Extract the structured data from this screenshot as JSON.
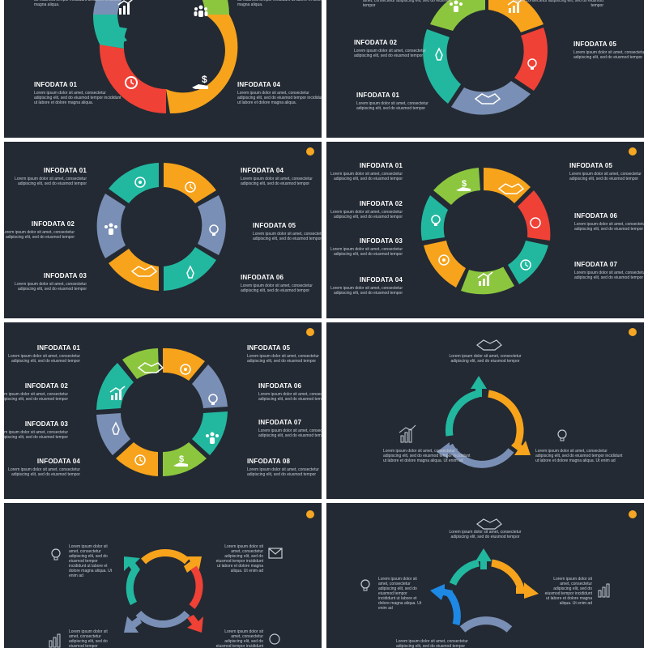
{
  "slides": [
    {
      "labels": [
        {
          "title": "",
          "body": "do eiusmod tempor incididunt ut labore et dolore magna aliqua."
        },
        {
          "title": "",
          "body": "do eiusmod tempor incididunt ut labore et dolore magna aliqua."
        },
        {
          "title": "INFODATA 01",
          "body": "Lorem ipsum dolor sit amet, consectetur adipiscing elit, sed do eiusmod tempor incididunt ut labore et dolore magna aliqua."
        },
        {
          "title": "INFODATA 04",
          "body": "Lorem ipsum dolor sit amet, consectetur adipiscing elit, sed do eiusmod tempor incididunt ut labore et dolore magna aliqua."
        }
      ]
    },
    {
      "labels": [
        {
          "title": "",
          "body": "amet, consectetur adipiscing elit, sed do eiusmod tempor"
        },
        {
          "title": "",
          "body": "amet, consectetur adipiscing elit, sed do eiusmod tempor"
        },
        {
          "title": "INFODATA 02",
          "body": "Lorem ipsum dolor sit amet, consectetur adipiscing elit, sed do eiusmod tempor"
        },
        {
          "title": "INFODATA 05",
          "body": "Lorem ipsum dolor sit amet, consectetur adipiscing elit, sed do eiusmod tempor"
        },
        {
          "title": "INFODATA 01",
          "body": "Lorem ipsum dolor sit amet, consectetur adipiscing elit, sed do eiusmod tempor"
        }
      ]
    },
    {
      "badge": "",
      "labels": [
        {
          "title": "INFODATA 01",
          "body": "Lorem ipsum dolor sit amet, consectetur adipiscing elit, sed do eiusmod tempor"
        },
        {
          "title": "INFODATA 04",
          "body": "Lorem ipsum dolor sit amet, consectetur adipiscing elit, sed do eiusmod tempor"
        },
        {
          "title": "INFODATA 02",
          "body": "Lorem ipsum dolor sit amet, consectetur adipiscing elit, sed do eiusmod tempor"
        },
        {
          "title": "INFODATA 05",
          "body": "Lorem ipsum dolor sit amet, consectetur adipiscing elit, sed do eiusmod tempor"
        },
        {
          "title": "INFODATA 03",
          "body": "Lorem ipsum dolor sit amet, consectetur adipiscing elit, sed do eiusmod tempor"
        },
        {
          "title": "INFODATA 06",
          "body": "Lorem ipsum dolor sit amet, consectetur adipiscing elit, sed do eiusmod tempor"
        }
      ]
    },
    {
      "badge": "",
      "labels": [
        {
          "title": "INFODATA 01",
          "body": "Lorem ipsum dolor sit amet, consectetur adipiscing elit, sed do eiusmod tempor"
        },
        {
          "title": "INFODATA 05",
          "body": "Lorem ipsum dolor sit amet, consectetur adipiscing elit, sed do eiusmod tempor"
        },
        {
          "title": "INFODATA 02",
          "body": "Lorem ipsum dolor sit amet, consectetur adipiscing elit, sed do eiusmod tempor"
        },
        {
          "title": "INFODATA 06",
          "body": "Lorem ipsum dolor sit amet, consectetur adipiscing elit, sed do eiusmod tempor"
        },
        {
          "title": "INFODATA 03",
          "body": "Lorem ipsum dolor sit amet, consectetur adipiscing elit, sed do eiusmod tempor"
        },
        {
          "title": "INFODATA 07",
          "body": "Lorem ipsum dolor sit amet, consectetur adipiscing elit, sed do eiusmod tempor"
        },
        {
          "title": "INFODATA 04",
          "body": "Lorem ipsum dolor sit amet, consectetur adipiscing elit, sed do eiusmod tempor"
        }
      ]
    },
    {
      "badge": "",
      "labels": [
        {
          "title": "INFODATA 01",
          "body": "Lorem ipsum dolor sit amet, consectetur adipiscing elit, sed do eiusmod tempor"
        },
        {
          "title": "INFODATA 05",
          "body": "Lorem ipsum dolor sit amet, consectetur adipiscing elit, sed do eiusmod tempor"
        },
        {
          "title": "INFODATA 02",
          "body": "Lorem ipsum dolor sit amet, consectetur adipiscing elit, sed do eiusmod tempor"
        },
        {
          "title": "INFODATA 06",
          "body": "Lorem ipsum dolor sit amet, consectetur adipiscing elit, sed do eiusmod tempor"
        },
        {
          "title": "INFODATA 03",
          "body": "Lorem ipsum dolor sit amet, consectetur adipiscing elit, sed do eiusmod tempor"
        },
        {
          "title": "INFODATA 07",
          "body": "Lorem ipsum dolor sit amet, consectetur adipiscing elit, sed do eiusmod tempor"
        },
        {
          "title": "INFODATA 04",
          "body": "Lorem ipsum dolor sit amet, consectetur adipiscing elit, sed do eiusmod tempor"
        },
        {
          "title": "INFODATA 08",
          "body": "Lorem ipsum dolor sit amet, consectetur adipiscing elit, sed do eiusmod tempor"
        }
      ]
    },
    {
      "badge": "",
      "labels": [
        {
          "title": "",
          "body": "Lorem ipsum dolor sit amet, consectetur adipiscing elit, sed do eiusmod tempor"
        },
        {
          "title": "",
          "body": "Lorem ipsum dolor sit amet, consectetur adipiscing elit, sed do eiusmod tempor incididunt ut labore et dolore magna aliqua. Ut enim ad"
        },
        {
          "title": "",
          "body": "Lorem ipsum dolor sit amet, consectetur adipiscing elit, sed do eiusmod tempor incididunt ut labore et dolore magna aliqua. Ut enim ad"
        }
      ]
    },
    {
      "badge": "",
      "labels": [
        {
          "title": "",
          "body": "Lorem ipsum dolor sit amet, consectetur adipiscing elit, sed do eiusmod tempor incididunt ut labore et dolore magna aliqua. Ut enim ad"
        },
        {
          "title": "",
          "body": "Lorem ipsum dolor sit amet, consectetur adipiscing elit, sed do eiusmod tempor incididunt ut labore et dolore magna aliqua. Ut enim ad"
        },
        {
          "title": "",
          "body": "Lorem ipsum dolor sit amet, consectetur adipiscing elit, sed do eiusmod tempor incididunt ut labore et"
        },
        {
          "title": "",
          "body": "Lorem ipsum dolor sit amet, consectetur adipiscing elit, sed do eiusmod tempor incididunt ut labore et"
        }
      ]
    },
    {
      "badge": "",
      "labels": [
        {
          "title": "",
          "body": "Lorem ipsum dolor sit amet, consectetur adipiscing elit, sed do eiusmod tempor"
        },
        {
          "title": "",
          "body": "Lorem ipsum dolor sit amet, consectetur adipiscing elit, sed do eiusmod tempor incididunt ut labore et dolore magna aliqua. Ut enim ad"
        },
        {
          "title": "",
          "body": "Lorem ipsum dolor sit amet, consectetur adipiscing elit, sed do eiusmod tempor incididunt ut labore et dolore magna aliqua. Ut enim ad"
        },
        {
          "title": "",
          "body": "Lorem ipsum dolor sit amet, consectetur adipiscing elit, sed do eiusmod tempor incididunt ut labore et"
        }
      ]
    }
  ],
  "colors": {
    "background": "#232a33",
    "green": "#8cc63f",
    "orange": "#f7a31c",
    "red": "#ef4136",
    "teal": "#22b8a0",
    "slate": "#7a8fb5",
    "blue": "#1e88e5",
    "badge": "#f5a623"
  }
}
